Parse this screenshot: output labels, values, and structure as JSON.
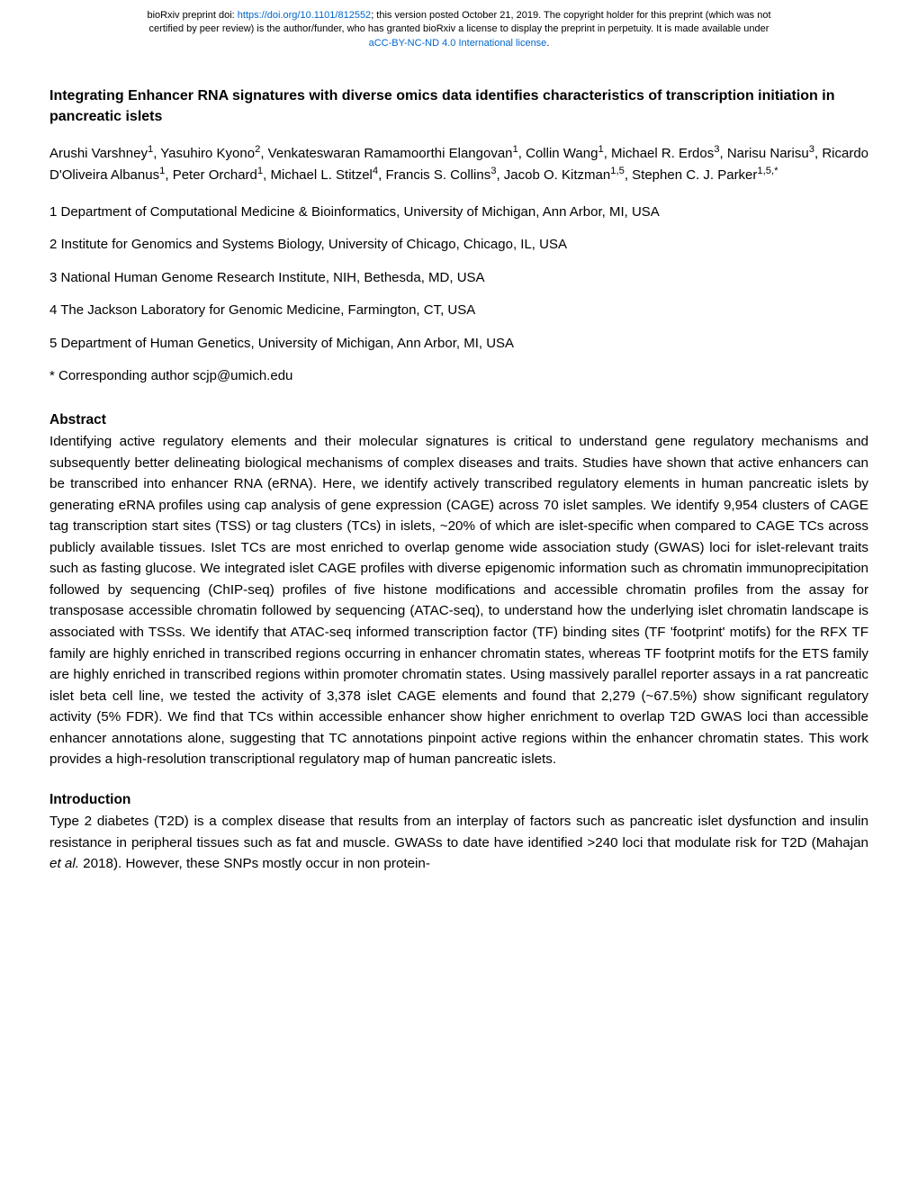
{
  "header": {
    "line1_prefix": "bioRxiv preprint doi: ",
    "doi_link": "https://doi.org/10.1101/812552",
    "line1_suffix": "; this version posted October 21, 2019. The copyright holder for this preprint (which was not",
    "line2": "certified by peer review) is the author/funder, who has granted bioRxiv a license to display the preprint in perpetuity. It is made available under",
    "license_link": "aCC-BY-NC-ND 4.0 International license",
    "line3_suffix": "."
  },
  "title": "Integrating Enhancer RNA signatures with diverse omics data identifies characteristics of transcription initiation in pancreatic islets",
  "authors_html": "Arushi Varshney<sup>1</sup>, Yasuhiro Kyono<sup>2</sup>, Venkateswaran Ramamoorthi Elangovan<sup>1</sup>, Collin Wang<sup>1</sup>, Michael R. Erdos<sup>3</sup>, Narisu Narisu<sup>3</sup>, Ricardo D'Oliveira Albanus<sup>1</sup>, Peter Orchard<sup>1</sup>, Michael L. Stitzel<sup>4</sup>, Francis S. Collins<sup>3</sup>, Jacob O. Kitzman<sup>1,5</sup>, Stephen C. J. Parker<sup>1,5,*</sup>",
  "affiliations": [
    "1 Department of Computational Medicine & Bioinformatics, University of Michigan, Ann Arbor, MI, USA",
    "2 Institute for Genomics and Systems Biology, University of Chicago, Chicago, IL, USA",
    "3 National Human Genome Research Institute, NIH, Bethesda, MD, USA",
    "4 The Jackson Laboratory for Genomic Medicine, Farmington, CT, USA",
    "5 Department of Human Genetics, University of Michigan, Ann Arbor, MI, USA"
  ],
  "corresponding": "* Corresponding author scjp@umich.edu",
  "abstract_heading": "Abstract",
  "abstract_text": "Identifying active regulatory elements and their molecular signatures is critical to understand gene regulatory mechanisms and subsequently better delineating biological mechanisms of complex diseases and traits. Studies have shown that active enhancers can be transcribed into enhancer RNA (eRNA). Here, we identify actively transcribed regulatory elements in human pancreatic islets by generating eRNA profiles using cap analysis of gene expression (CAGE) across 70 islet samples. We identify 9,954 clusters of CAGE tag transcription start sites (TSS) or tag clusters (TCs) in islets, ~20% of which are islet-specific when compared to CAGE TCs across publicly available tissues. Islet TCs are most enriched to overlap genome wide association study (GWAS) loci for islet-relevant traits such as fasting glucose. We integrated islet CAGE profiles with diverse epigenomic information such as chromatin immunoprecipitation followed by sequencing (ChIP-seq) profiles of five histone modifications and accessible chromatin profiles from the assay for transposase accessible chromatin followed by sequencing (ATAC-seq), to understand how the underlying islet chromatin landscape is associated with TSSs. We identify that ATAC-seq informed transcription factor (TF) binding sites (TF 'footprint' motifs) for the RFX TF family are highly enriched in transcribed regions occurring in enhancer chromatin states, whereas TF footprint motifs for the ETS family are highly enriched in transcribed regions within promoter chromatin states. Using massively parallel reporter assays in a rat pancreatic islet beta cell line, we tested the activity of 3,378 islet CAGE elements and found that 2,279 (~67.5%) show significant regulatory activity (5% FDR). We find that TCs within accessible enhancer show higher enrichment to overlap T2D GWAS loci than accessible enhancer annotations alone, suggesting that TC annotations pinpoint active regions within the enhancer chromatin states. This work provides a high-resolution transcriptional regulatory map of human pancreatic islets.",
  "intro_heading": "Introduction",
  "intro_html": "Type 2 diabetes (T2D) is a complex disease that results from an interplay of factors such as pancreatic islet dysfunction and insulin resistance in peripheral tissues such as fat and muscle. GWASs to date have identified >240 loci that modulate risk for T2D (Mahajan <span class=\"italic\">et al.</span> 2018). However, these SNPs mostly occur in non protein-"
}
